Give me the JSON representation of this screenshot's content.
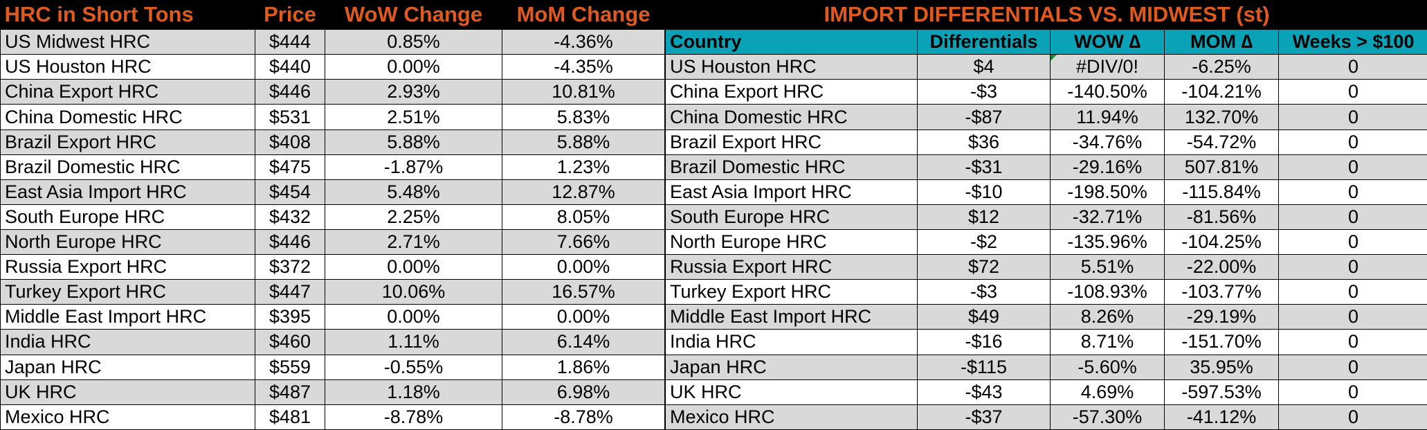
{
  "left": {
    "headers": [
      "HRC in Short Tons",
      "Price",
      "WoW Change",
      "MoM Change"
    ],
    "rows": [
      [
        "US Midwest HRC",
        "$444",
        "0.85%",
        "-4.36%"
      ],
      [
        "US Houston HRC",
        "$440",
        "0.00%",
        "-4.35%"
      ],
      [
        "China Export HRC",
        "$446",
        "2.93%",
        "10.81%"
      ],
      [
        "China Domestic HRC",
        "$531",
        "2.51%",
        "5.83%"
      ],
      [
        "Brazil Export HRC",
        "$408",
        "5.88%",
        "5.88%"
      ],
      [
        "Brazil Domestic HRC",
        "$475",
        "-1.87%",
        "1.23%"
      ],
      [
        "East Asia Import HRC",
        "$454",
        "5.48%",
        "12.87%"
      ],
      [
        "South Europe HRC",
        "$432",
        "2.25%",
        "8.05%"
      ],
      [
        "North Europe HRC",
        "$446",
        "2.71%",
        "7.66%"
      ],
      [
        "Russia Export HRC",
        "$372",
        "0.00%",
        "0.00%"
      ],
      [
        "Turkey Export HRC",
        "$447",
        "10.06%",
        "16.57%"
      ],
      [
        "Middle East Import HRC",
        "$395",
        "0.00%",
        "0.00%"
      ],
      [
        "India HRC",
        "$460",
        "1.11%",
        "6.14%"
      ],
      [
        "Japan HRC",
        "$559",
        "-0.55%",
        "1.86%"
      ],
      [
        "UK HRC",
        "$487",
        "1.18%",
        "6.98%"
      ],
      [
        "Mexico HRC",
        "$481",
        "-8.78%",
        "-8.78%"
      ]
    ]
  },
  "right": {
    "title": "IMPORT DIFFERENTIALS VS. MIDWEST (st)",
    "headers": [
      "Country",
      "Differentials",
      "WOW ∆",
      "MOM ∆",
      "Weeks > $100"
    ],
    "rows": [
      [
        "US Houston HRC",
        "$4",
        "#DIV/0!",
        "-6.25%",
        "0"
      ],
      [
        "China Export HRC",
        "-$3",
        "-140.50%",
        "-104.21%",
        "0"
      ],
      [
        "China Domestic HRC",
        "-$87",
        "11.94%",
        "132.70%",
        "0"
      ],
      [
        "Brazil Export HRC",
        "$36",
        "-34.76%",
        "-54.72%",
        "0"
      ],
      [
        "Brazil Domestic HRC",
        "-$31",
        "-29.16%",
        "507.81%",
        "0"
      ],
      [
        "East Asia Import HRC",
        "-$10",
        "-198.50%",
        "-115.84%",
        "0"
      ],
      [
        "South Europe HRC",
        "$12",
        "-32.71%",
        "-81.56%",
        "0"
      ],
      [
        "North Europe HRC",
        "-$2",
        "-135.96%",
        "-104.25%",
        "0"
      ],
      [
        "Russia Export HRC",
        "$72",
        "5.51%",
        "-22.00%",
        "0"
      ],
      [
        "Turkey Export HRC",
        "-$3",
        "-108.93%",
        "-103.77%",
        "0"
      ],
      [
        "Middle East Import HRC",
        "$49",
        "8.26%",
        "-29.19%",
        "0"
      ],
      [
        "India HRC",
        "-$16",
        "8.71%",
        "-151.70%",
        "0"
      ],
      [
        "Japan HRC",
        "-$115",
        "-5.60%",
        "35.95%",
        "0"
      ],
      [
        "UK HRC",
        "-$43",
        "4.69%",
        "-597.53%",
        "0"
      ],
      [
        "Mexico HRC",
        "-$37",
        "-57.30%",
        "-41.12%",
        "0"
      ]
    ]
  },
  "colors": {
    "title_text": "#e05a1e",
    "header_fill": "#0aa2b7",
    "shade_fill": "#d9d9d9"
  }
}
